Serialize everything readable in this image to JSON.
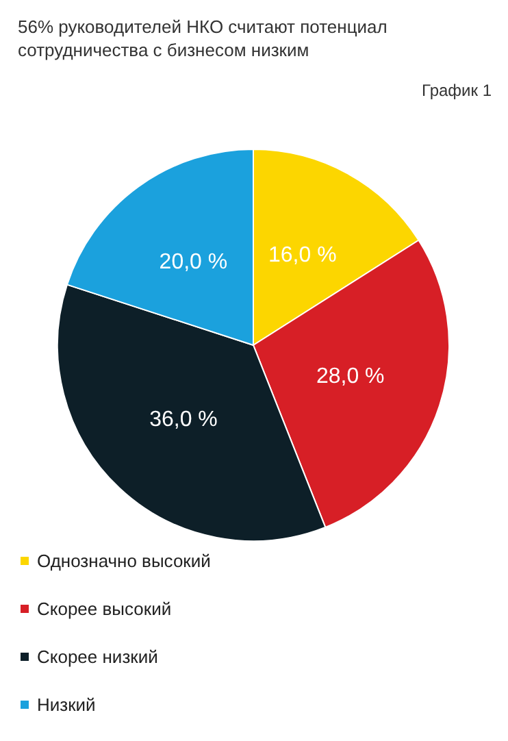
{
  "chart_data": {
    "type": "pie",
    "title": "56% руководителей НКО считают потенциал\nсотрудничества с бизнесом низким",
    "annotations": [
      "График 1"
    ],
    "categories": [
      "Однозначно высокий",
      "Скорее высокий",
      "Скорее низкий",
      "Низкий"
    ],
    "values": [
      16,
      28,
      36,
      20
    ],
    "value_labels": [
      "16,0 %",
      "28,0 %",
      "36,0 %",
      "20,0 %"
    ],
    "colors": [
      "#fcd600",
      "#d71f26",
      "#0d1f28",
      "#1ba1dd"
    ],
    "legend": "bottom left"
  }
}
